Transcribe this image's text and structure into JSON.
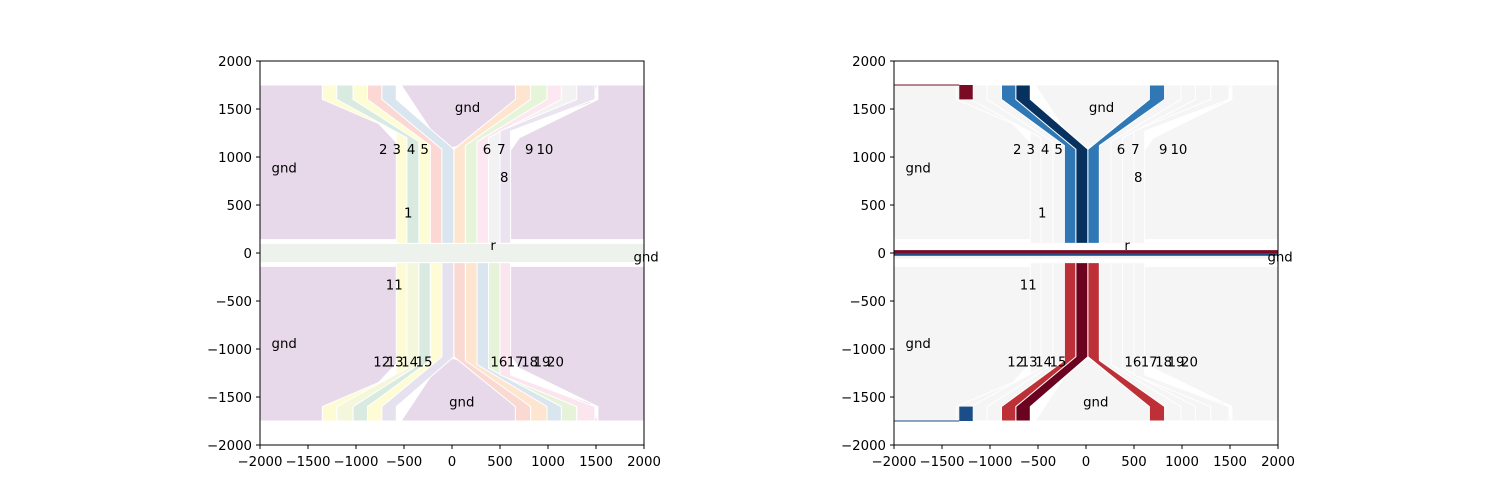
{
  "chart_data": [
    {
      "type": "heatmap",
      "description_of_geometry": "top-gate layout of electrodes, coloured by gate index (pastel qualitative map)",
      "xlim": [
        -2000,
        2000
      ],
      "ylim": [
        -2000,
        2000
      ],
      "xticks": [
        "−2000",
        "−1500",
        "−1000",
        "−500",
        "0",
        "500",
        "1000",
        "1500",
        "2000"
      ],
      "yticks": [
        "2000",
        "1500",
        "1000",
        "500",
        "0",
        "−500",
        "−1000",
        "−1500",
        "−2000"
      ],
      "xtick_values": [
        -2000,
        -1500,
        -1000,
        -500,
        0,
        500,
        1000,
        1500,
        2000
      ],
      "ytick_values": [
        2000,
        1500,
        1000,
        500,
        0,
        -500,
        -1000,
        -1500,
        -2000
      ],
      "colors": {
        "gnd": "#e8d9ea",
        "reservoir": "#eef2ed",
        "background": "#ffffff",
        "gates": [
          "#fdfcd4",
          "#d9ebe1",
          "#fcfcd5",
          "#fbd8d3",
          "#d9e6f0",
          "#fde5cf",
          "#e6f4d9",
          "#fde7f1",
          "#f2f2f2",
          "#ebe3f0",
          "#fcfbd3",
          "#f5f7dd",
          "#d9ebe1",
          "#fdfcd4",
          "#e6e1ee",
          "#fbd9d3",
          "#fde5cf",
          "#d9e6f0",
          "#e6f3d8",
          "#fbe6f0"
        ]
      },
      "labels": [
        {
          "text": "gnd",
          "x": 30,
          "y": 1470
        },
        {
          "text": "gnd",
          "x": -1880,
          "y": 840
        },
        {
          "text": "gnd",
          "x": -1880,
          "y": -990
        },
        {
          "text": "gnd",
          "x": 1890,
          "y": -90
        },
        {
          "text": "gnd",
          "x": -30,
          "y": -1600
        },
        {
          "text": "r",
          "x": 400,
          "y": 30
        },
        {
          "text": "1",
          "x": -500,
          "y": 370
        },
        {
          "text": "2",
          "x": -760,
          "y": 1030
        },
        {
          "text": "3",
          "x": -620,
          "y": 1030
        },
        {
          "text": "4",
          "x": -470,
          "y": 1030
        },
        {
          "text": "5",
          "x": -330,
          "y": 1030
        },
        {
          "text": "6",
          "x": 320,
          "y": 1030
        },
        {
          "text": "7",
          "x": 470,
          "y": 1030
        },
        {
          "text": "8",
          "x": 500,
          "y": 740
        },
        {
          "text": "9",
          "x": 760,
          "y": 1030
        },
        {
          "text": "10",
          "x": 880,
          "y": 1030
        },
        {
          "text": "11",
          "x": -690,
          "y": -380
        },
        {
          "text": "12",
          "x": -820,
          "y": -1180
        },
        {
          "text": "13",
          "x": -680,
          "y": -1180
        },
        {
          "text": "14",
          "x": -530,
          "y": -1180
        },
        {
          "text": "15",
          "x": -380,
          "y": -1180
        },
        {
          "text": "16",
          "x": 400,
          "y": -1180
        },
        {
          "text": "17",
          "x": 570,
          "y": -1180
        },
        {
          "text": "18",
          "x": 720,
          "y": -1180
        },
        {
          "text": "19",
          "x": 850,
          "y": -1180
        },
        {
          "text": "20",
          "x": 990,
          "y": -1180
        }
      ]
    },
    {
      "type": "heatmap",
      "description_of_geometry": "same layout coloured by applied voltage (diverging red–blue map); gates 4,6 and 15,16 active",
      "xlim": [
        -2000,
        2000
      ],
      "ylim": [
        -2000,
        2000
      ],
      "xticks": [
        "−2000",
        "−1500",
        "−1000",
        "−500",
        "0",
        "500",
        "1000",
        "1500",
        "2000"
      ],
      "yticks": [
        "2000",
        "1500",
        "1000",
        "500",
        "0",
        "−500",
        "−1000",
        "−1500",
        "−2000"
      ],
      "xtick_values": [
        -2000,
        -1500,
        -1000,
        -500,
        0,
        500,
        1000,
        1500,
        2000
      ],
      "ytick_values": [
        2000,
        1500,
        1000,
        500,
        0,
        -500,
        -1000,
        -1500,
        -2000
      ],
      "colors": {
        "neutral": "#f5f5f5",
        "blue_mid": "#2f78b5",
        "blue_dark": "#07325f",
        "blue_pad": "#1b4d88",
        "red_mid": "#bd3037",
        "red_dark": "#6a0220",
        "red_pad": "#790b24"
      },
      "labels": [
        {
          "text": "gnd",
          "x": 30,
          "y": 1470
        },
        {
          "text": "gnd",
          "x": -1880,
          "y": 840
        },
        {
          "text": "gnd",
          "x": -1880,
          "y": -990
        },
        {
          "text": "gnd",
          "x": 1890,
          "y": -90
        },
        {
          "text": "gnd",
          "x": -30,
          "y": -1600
        },
        {
          "text": "r",
          "x": 400,
          "y": 30
        },
        {
          "text": "1",
          "x": -500,
          "y": 370
        },
        {
          "text": "2",
          "x": -760,
          "y": 1030
        },
        {
          "text": "3",
          "x": -620,
          "y": 1030
        },
        {
          "text": "4",
          "x": -470,
          "y": 1030
        },
        {
          "text": "5",
          "x": -330,
          "y": 1030
        },
        {
          "text": "6",
          "x": 320,
          "y": 1030
        },
        {
          "text": "7",
          "x": 470,
          "y": 1030
        },
        {
          "text": "8",
          "x": 500,
          "y": 740
        },
        {
          "text": "9",
          "x": 760,
          "y": 1030
        },
        {
          "text": "10",
          "x": 880,
          "y": 1030
        },
        {
          "text": "11",
          "x": -690,
          "y": -380
        },
        {
          "text": "12",
          "x": -820,
          "y": -1180
        },
        {
          "text": "13",
          "x": -680,
          "y": -1180
        },
        {
          "text": "14",
          "x": -530,
          "y": -1180
        },
        {
          "text": "15",
          "x": -380,
          "y": -1180
        },
        {
          "text": "16",
          "x": 400,
          "y": -1180
        },
        {
          "text": "17",
          "x": 570,
          "y": -1180
        },
        {
          "text": "18",
          "x": 720,
          "y": -1180
        },
        {
          "text": "19",
          "x": 850,
          "y": -1180
        },
        {
          "text": "20",
          "x": 990,
          "y": -1180
        }
      ]
    }
  ]
}
